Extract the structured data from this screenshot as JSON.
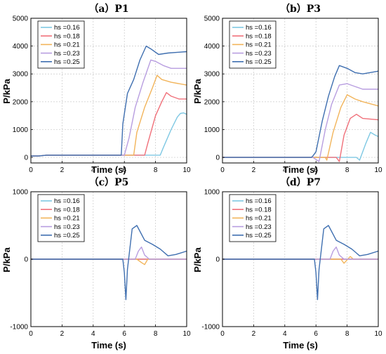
{
  "figure": {
    "series_colors": [
      "#7ec8e3",
      "#f0707a",
      "#f2b45a",
      "#b89ee0",
      "#3f6fb0"
    ]
  },
  "chart_data": [
    {
      "type": "line",
      "title": "（a）P1",
      "xlabel": "Time (s)",
      "ylabel": "P/kPa",
      "xlim": [
        0,
        10
      ],
      "ylim": [
        -200,
        5000
      ],
      "xticks": [
        0,
        2,
        4,
        6,
        8,
        10
      ],
      "yticks": [
        0,
        1000,
        2000,
        3000,
        4000,
        5000
      ],
      "grid": true,
      "legend": "top-left",
      "series": [
        {
          "name": "hs =0.16",
          "color": "#7ec8e3",
          "x": [
            0,
            0.5,
            1,
            5.8,
            6,
            8.3,
            8.5,
            9,
            9.4,
            9.6,
            9.8,
            10
          ],
          "y": [
            50,
            50,
            80,
            80,
            80,
            80,
            350,
            1000,
            1450,
            1580,
            1600,
            1550
          ]
        },
        {
          "name": "hs =0.18",
          "color": "#f0707a",
          "x": [
            0,
            0.5,
            1,
            5.8,
            6,
            7.3,
            7.5,
            8,
            8.4,
            8.7,
            9,
            9.5,
            10
          ],
          "y": [
            50,
            50,
            80,
            80,
            80,
            80,
            500,
            1500,
            2000,
            2330,
            2200,
            2100,
            2100
          ]
        },
        {
          "name": "hs =0.21",
          "color": "#f2b45a",
          "x": [
            0,
            0.5,
            1,
            5.8,
            6,
            6.6,
            6.8,
            7.3,
            7.8,
            8.1,
            8.4,
            9,
            10
          ],
          "y": [
            50,
            50,
            80,
            80,
            80,
            80,
            900,
            1800,
            2500,
            2950,
            2800,
            2700,
            2600
          ]
        },
        {
          "name": "hs =0.23",
          "color": "#b89ee0",
          "x": [
            0,
            0.5,
            1,
            5.8,
            6,
            6.3,
            6.7,
            7.2,
            7.7,
            8,
            8.5,
            9,
            10
          ],
          "y": [
            50,
            50,
            80,
            80,
            80,
            700,
            1800,
            2700,
            3500,
            3450,
            3300,
            3200,
            3200
          ]
        },
        {
          "name": "hs =0.25",
          "color": "#3f6fb0",
          "x": [
            0,
            0.5,
            1,
            5.8,
            5.9,
            6.2,
            6.6,
            7,
            7.4,
            7.7,
            8.2,
            8.8,
            10
          ],
          "y": [
            50,
            50,
            80,
            80,
            1200,
            2300,
            2800,
            3500,
            4000,
            3900,
            3700,
            3750,
            3800
          ]
        }
      ]
    },
    {
      "type": "line",
      "title": "（b）P3",
      "xlabel": "Time (s)",
      "ylabel": "P/kPa",
      "xlim": [
        0,
        10
      ],
      "ylim": [
        -200,
        5000
      ],
      "xticks": [
        0,
        2,
        4,
        6,
        8,
        10
      ],
      "yticks": [
        0,
        1000,
        2000,
        3000,
        4000,
        5000
      ],
      "grid": true,
      "legend": "top-left",
      "series": [
        {
          "name": "hs =0.16",
          "color": "#7ec8e3",
          "x": [
            0,
            5.8,
            8.6,
            8.8,
            9.2,
            9.5,
            9.8,
            10
          ],
          "y": [
            0,
            0,
            0,
            -100,
            500,
            900,
            800,
            750
          ]
        },
        {
          "name": "hs =0.18",
          "color": "#f0707a",
          "x": [
            0,
            5.8,
            7.3,
            7.5,
            7.8,
            8.2,
            8.6,
            9,
            10
          ],
          "y": [
            0,
            0,
            0,
            -150,
            800,
            1400,
            1550,
            1400,
            1350
          ]
        },
        {
          "name": "hs =0.21",
          "color": "#f2b45a",
          "x": [
            0,
            5.8,
            6.6,
            6.7,
            7.1,
            7.6,
            8,
            8.5,
            9,
            10
          ],
          "y": [
            0,
            0,
            0,
            -100,
            900,
            1800,
            2250,
            2100,
            2000,
            1850
          ]
        },
        {
          "name": "hs =0.23",
          "color": "#b89ee0",
          "x": [
            0,
            5.8,
            6.2,
            6.6,
            7,
            7.5,
            8,
            8.5,
            9,
            10
          ],
          "y": [
            0,
            0,
            -150,
            1000,
            1900,
            2600,
            2650,
            2550,
            2450,
            2450
          ]
        },
        {
          "name": "hs =0.25",
          "color": "#3f6fb0",
          "x": [
            0,
            5.7,
            5.8,
            6,
            6.4,
            6.8,
            7.2,
            7.5,
            8,
            8.5,
            9,
            10
          ],
          "y": [
            0,
            0,
            50,
            200,
            1300,
            2200,
            2900,
            3300,
            3200,
            3050,
            3000,
            3100
          ]
        }
      ]
    },
    {
      "type": "line",
      "title": "（c）P5",
      "xlabel": "Time (s)",
      "ylabel": "P/kPa",
      "xlim": [
        0,
        10
      ],
      "ylim": [
        -1000,
        1000
      ],
      "xticks": [
        0,
        2,
        4,
        6,
        8,
        10
      ],
      "yticks": [
        -1000,
        0,
        1000
      ],
      "grid": true,
      "legend": "top-left",
      "series": [
        {
          "name": "hs =0.16",
          "color": "#7ec8e3",
          "x": [
            0,
            10
          ],
          "y": [
            0,
            0
          ]
        },
        {
          "name": "hs =0.18",
          "color": "#f0707a",
          "x": [
            0,
            10
          ],
          "y": [
            0,
            0
          ]
        },
        {
          "name": "hs =0.21",
          "color": "#f2b45a",
          "x": [
            0,
            6.8,
            7.1,
            7.3,
            7.5,
            10
          ],
          "y": [
            0,
            0,
            -50,
            -80,
            0,
            0
          ]
        },
        {
          "name": "hs =0.23",
          "color": "#b89ee0",
          "x": [
            0,
            6.7,
            6.9,
            7.1,
            7.3,
            7.6,
            10
          ],
          "y": [
            0,
            0,
            120,
            180,
            60,
            0,
            0
          ]
        },
        {
          "name": "hs =0.25",
          "color": "#3f6fb0",
          "x": [
            0,
            5.9,
            6.0,
            6.1,
            6.2,
            6.5,
            6.8,
            7.3,
            7.8,
            8.3,
            8.8,
            9.3,
            10
          ],
          "y": [
            0,
            0,
            -200,
            -600,
            -150,
            450,
            500,
            280,
            220,
            150,
            50,
            70,
            120
          ]
        }
      ]
    },
    {
      "type": "line",
      "title": "（d）P7",
      "xlabel": "Time (s)",
      "ylabel": "P/kPa",
      "xlim": [
        0,
        10
      ],
      "ylim": [
        -1000,
        1000
      ],
      "xticks": [
        0,
        2,
        4,
        6,
        8,
        10
      ],
      "yticks": [
        -1000,
        0,
        1000
      ],
      "grid": true,
      "legend": "top-left",
      "series": [
        {
          "name": "hs =0.16",
          "color": "#7ec8e3",
          "x": [
            0,
            10
          ],
          "y": [
            0,
            0
          ]
        },
        {
          "name": "hs =0.18",
          "color": "#f0707a",
          "x": [
            0,
            10
          ],
          "y": [
            0,
            0
          ]
        },
        {
          "name": "hs =0.21",
          "color": "#f2b45a",
          "x": [
            0,
            7.6,
            7.8,
            8,
            8.2,
            8.4,
            10
          ],
          "y": [
            0,
            0,
            -60,
            -10,
            40,
            0,
            0
          ]
        },
        {
          "name": "hs =0.23",
          "color": "#b89ee0",
          "x": [
            0,
            6.9,
            7.1,
            7.3,
            7.5,
            7.8,
            10
          ],
          "y": [
            0,
            0,
            120,
            180,
            60,
            0,
            0
          ]
        },
        {
          "name": "hs =0.25",
          "color": "#3f6fb0",
          "x": [
            0,
            5.9,
            6.0,
            6.1,
            6.2,
            6.5,
            6.8,
            7.3,
            7.8,
            8.3,
            8.8,
            9.3,
            10
          ],
          "y": [
            0,
            0,
            -200,
            -600,
            -150,
            450,
            500,
            280,
            220,
            150,
            50,
            70,
            120
          ]
        }
      ]
    }
  ]
}
